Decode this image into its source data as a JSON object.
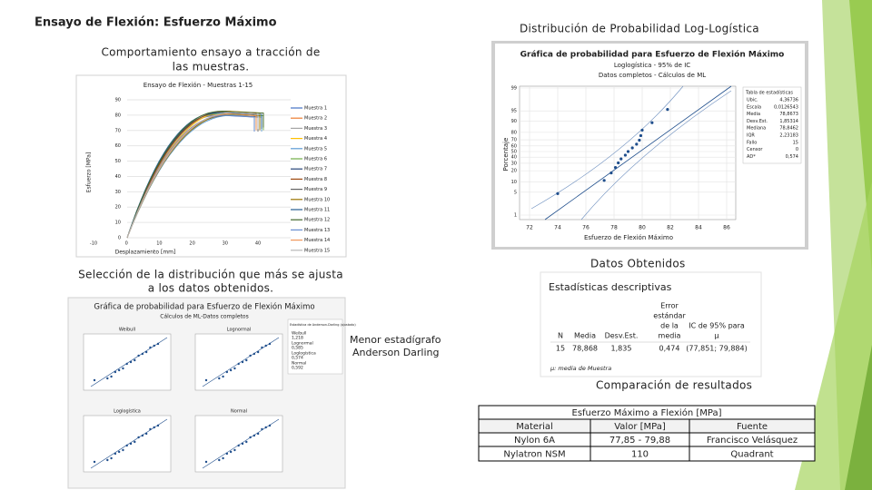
{
  "header": {
    "title": "Ensayo de Flexión: Esfuerzo Máximo"
  },
  "tensile": {
    "caption": [
      "Comportamiento ensayo a tracción de",
      "las muestras."
    ],
    "chart": {
      "title": "Ensayo de Flexión - Muestras 1-15",
      "y_label": "Esfuerzo [MPa]",
      "x_label": "Desplazamiento [mm]",
      "yticks": [
        0,
        10,
        20,
        30,
        40,
        50,
        60,
        70,
        80,
        90
      ],
      "xticks": [
        -10,
        0,
        10,
        20,
        30,
        40
      ],
      "legend": [
        "Muestra 1",
        "Muestra 2",
        "Muestra 3",
        "Muestra 4",
        "Muestra 5",
        "Muestra 6",
        "Muestra 7",
        "Muestra 8",
        "Muestra 9",
        "Muestra 10",
        "Muestra 11",
        "Muestra 12",
        "Muestra 13",
        "Muestra 14",
        "Muestra 15"
      ]
    }
  },
  "loglogistic": {
    "caption": "Distribución de Probabilidad Log-Logística",
    "chart": {
      "title": "Gráfica de probabilidad para Esfuerzo de Flexión Máximo",
      "subtitle": "Loglogística - 95% de IC",
      "subtitle2": "Datos completos - Cálculos de ML",
      "y_label": "Porcentaje",
      "x_label": "Esfuerzo de Flexión Máximo",
      "yticks": [
        1,
        5,
        10,
        20,
        30,
        40,
        50,
        60,
        70,
        80,
        90,
        95,
        99
      ],
      "xticks": [
        72,
        74,
        76,
        78,
        80,
        82,
        84,
        86
      ],
      "points": [
        74.0,
        77.3,
        77.8,
        78.1,
        78.3,
        78.5,
        78.8,
        79.0,
        79.3,
        79.6,
        79.8,
        79.9,
        80.0,
        80.7,
        81.8
      ],
      "stats_title": "Tabla de estadísticas",
      "stats": [
        [
          "Ubic.",
          "4,36736"
        ],
        [
          "Escala",
          "0,0126543"
        ],
        [
          "Media",
          "78,8673"
        ],
        [
          "Desv.Est.",
          "1,85314"
        ],
        [
          "Mediana",
          "78,8462"
        ],
        [
          "IQR",
          "2,23183"
        ],
        [
          "Fallo",
          "15"
        ],
        [
          "Censor",
          "0"
        ],
        [
          "AD*",
          "0,574"
        ]
      ]
    }
  },
  "selection": {
    "caption": [
      "Selección de la distribución que más se ajusta",
      "a los datos obtenidos."
    ],
    "chart": {
      "title": "Gráfica de probabilidad para Esfuerzo de Flexión Máximo",
      "subtitle": "Cálculos de ML-Datos completos",
      "panels": [
        "Weibull",
        "Lognormal",
        "Loglogística",
        "Normal"
      ],
      "legend_title": "Estadística de Anderson-Darling (ajustado)",
      "legend": [
        [
          "Weibull",
          "1,218"
        ],
        [
          "Lognormal",
          "0,585"
        ],
        [
          "Loglogística",
          "0,574"
        ],
        [
          "Normal",
          "0,592"
        ]
      ]
    },
    "note": [
      "Menor estadígrafo",
      "Anderson Darling"
    ]
  },
  "descriptive": {
    "caption": "Datos Obtenidos",
    "title": "Estadísticas descriptivas",
    "columns": [
      [
        "N"
      ],
      [
        "Media"
      ],
      [
        "Desv.Est."
      ],
      [
        "Error",
        "estándar",
        "de la",
        "media"
      ],
      [
        "IC de 95% para",
        "μ"
      ]
    ],
    "row": [
      "15",
      "78,868",
      "1,835",
      "0,474",
      "(77,851; 79,884)"
    ],
    "footnote": "μ: media de Muestra"
  },
  "comparison": {
    "caption": "Comparación de resultados",
    "header": "Esfuerzo Máximo a Flexión [MPa]",
    "rows": [
      [
        "Material",
        "Valor [MPa]",
        "Fuente"
      ],
      [
        "Nylon 6A",
        "77,85 - 79,88",
        "Francisco Velásquez"
      ],
      [
        "Nylatron NSM",
        "110",
        "Quadrant"
      ]
    ]
  }
}
